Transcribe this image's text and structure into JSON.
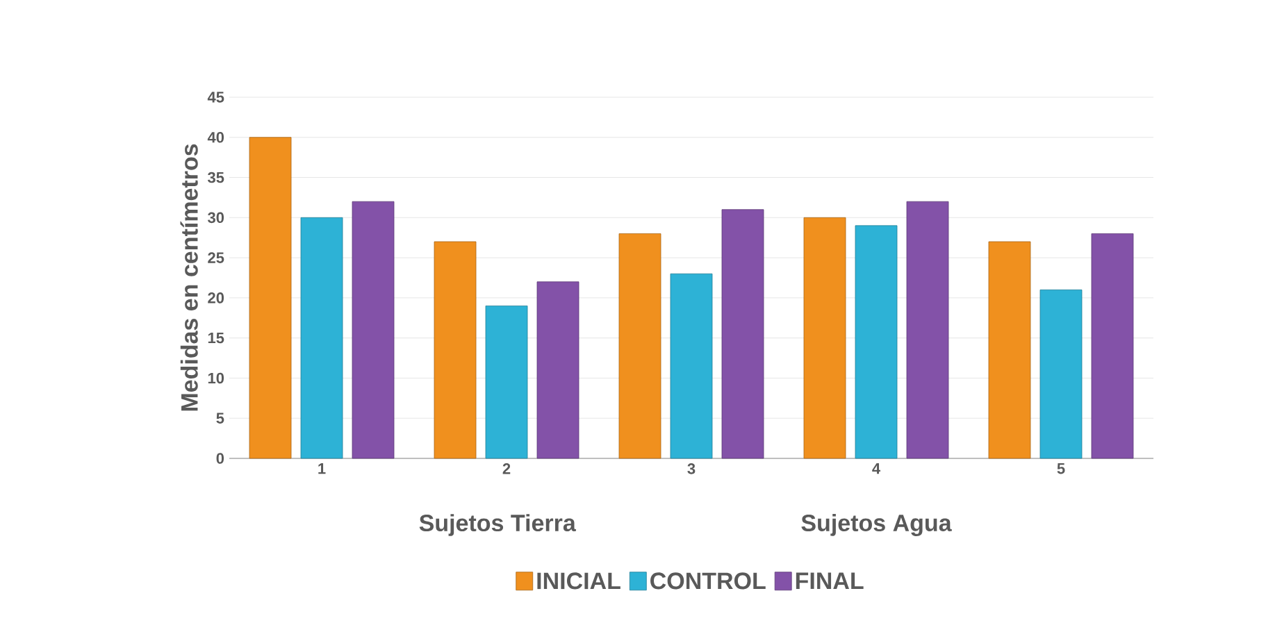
{
  "chart_data": {
    "type": "bar",
    "ylabel": "Medidas en centímetros",
    "categories": [
      "1",
      "2",
      "3",
      "4",
      "5"
    ],
    "series": [
      {
        "name": "INICIAL",
        "color": "#f0901e",
        "values": [
          40,
          27,
          28,
          30,
          27
        ]
      },
      {
        "name": "CONTROL",
        "color": "#2db2d6",
        "values": [
          30,
          19,
          23,
          29,
          21
        ]
      },
      {
        "name": "FINAL",
        "color": "#8352a8",
        "values": [
          32,
          22,
          31,
          32,
          28
        ]
      }
    ],
    "annotations": [
      "Sujetos Tierra",
      "Sujetos Agua"
    ],
    "ylim": [
      0,
      45
    ],
    "yticks": [
      0,
      5,
      10,
      15,
      20,
      25,
      30,
      35,
      40,
      45
    ],
    "grid": "y",
    "legend": "bottom"
  }
}
